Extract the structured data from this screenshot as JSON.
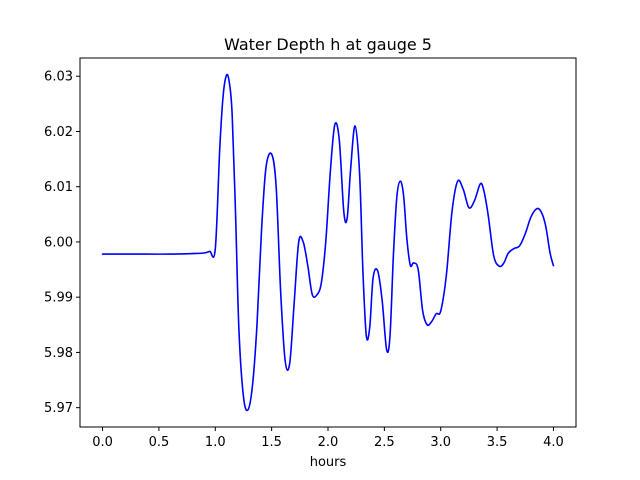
{
  "chart_data": {
    "type": "line",
    "title": "Water Depth h at gauge 5",
    "xlabel": "hours",
    "ylabel": "",
    "xlim": [
      -0.2,
      4.2
    ],
    "ylim": [
      5.9665,
      6.0333
    ],
    "xticks": [
      0.0,
      0.5,
      1.0,
      1.5,
      2.0,
      2.5,
      3.0,
      3.5,
      4.0
    ],
    "xtick_labels": [
      "0.0",
      "0.5",
      "1.0",
      "1.5",
      "2.0",
      "2.5",
      "3.0",
      "3.5",
      "4.0"
    ],
    "yticks": [
      5.97,
      5.98,
      5.99,
      6.0,
      6.01,
      6.02,
      6.03
    ],
    "ytick_labels": [
      "5.97",
      "5.98",
      "5.99",
      "6.00",
      "6.01",
      "6.02",
      "6.03"
    ],
    "grid": false,
    "series": [
      {
        "color": "#0000ff",
        "x": [
          0.0,
          0.2,
          0.4,
          0.6,
          0.8,
          0.9,
          0.95,
          1.0,
          1.04,
          1.07,
          1.1,
          1.125,
          1.15,
          1.18,
          1.21,
          1.25,
          1.29,
          1.33,
          1.37,
          1.41,
          1.45,
          1.5,
          1.54,
          1.58,
          1.62,
          1.66,
          1.7,
          1.74,
          1.78,
          1.82,
          1.86,
          1.9,
          1.94,
          1.98,
          2.02,
          2.06,
          2.1,
          2.14,
          2.17,
          2.2,
          2.24,
          2.28,
          2.31,
          2.34,
          2.37,
          2.4,
          2.44,
          2.48,
          2.52,
          2.55,
          2.58,
          2.61,
          2.64,
          2.67,
          2.7,
          2.73,
          2.76,
          2.8,
          2.84,
          2.88,
          2.92,
          2.96,
          3.0,
          3.05,
          3.1,
          3.15,
          3.2,
          3.25,
          3.3,
          3.35,
          3.38,
          3.42,
          3.47,
          3.52,
          3.56,
          3.6,
          3.65,
          3.7,
          3.75,
          3.8,
          3.85,
          3.89,
          3.93,
          3.97,
          4.0
        ],
        "y": [
          5.9978,
          5.9978,
          5.9978,
          5.9978,
          5.9979,
          5.998,
          5.9983,
          5.9987,
          6.017,
          6.0265,
          6.0302,
          6.0288,
          6.023,
          6.005,
          5.984,
          5.972,
          5.9696,
          5.974,
          5.985,
          6.002,
          6.0135,
          6.0159,
          6.01,
          5.991,
          5.9785,
          5.978,
          5.989,
          6.0,
          6.0,
          5.9958,
          5.9905,
          5.9904,
          5.9925,
          6.0,
          6.0125,
          6.0212,
          6.0185,
          6.0055,
          6.0043,
          6.013,
          6.021,
          6.0125,
          5.9945,
          5.983,
          5.9845,
          5.9935,
          5.9948,
          5.9895,
          5.9805,
          5.983,
          5.9975,
          6.008,
          6.011,
          6.0085,
          6.0005,
          5.9958,
          5.9962,
          5.995,
          5.9875,
          5.985,
          5.9856,
          5.987,
          5.9875,
          5.994,
          6.0055,
          6.011,
          6.0095,
          6.0062,
          6.0075,
          6.0105,
          6.0095,
          6.005,
          5.9975,
          5.9956,
          5.9962,
          5.998,
          5.9988,
          5.9993,
          6.0015,
          6.0045,
          6.006,
          6.0055,
          6.003,
          5.998,
          5.9957
        ]
      }
    ]
  }
}
